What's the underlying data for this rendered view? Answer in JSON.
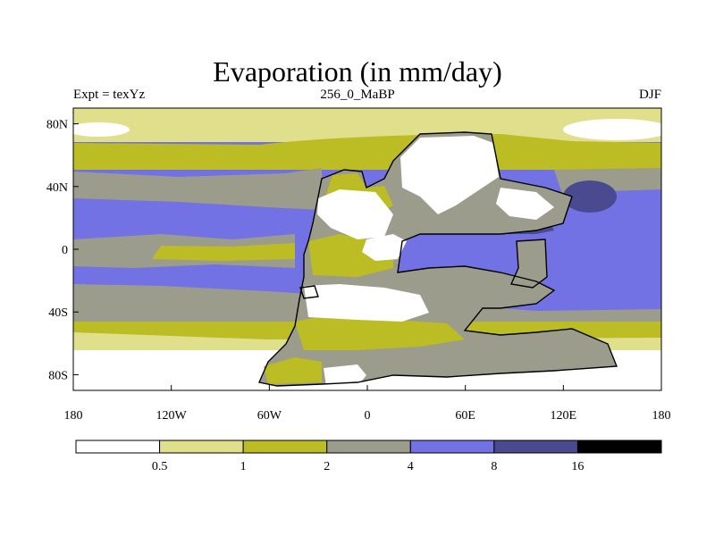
{
  "title": "Evaporation (in mm/day)",
  "subtitle_left": "Expt = texYz",
  "subtitle_center": "256_0_MaBP",
  "subtitle_right": "DJF",
  "map": {
    "projection": "cylindrical-equidistant",
    "lon_range": [
      -180,
      180
    ],
    "lat_range": [
      -90,
      90
    ],
    "lon_ticks": [
      {
        "value": -180,
        "label": "180"
      },
      {
        "value": -120,
        "label": "120W"
      },
      {
        "value": -60,
        "label": "60W"
      },
      {
        "value": 0,
        "label": "0"
      },
      {
        "value": 60,
        "label": "60E"
      },
      {
        "value": 120,
        "label": "120E"
      },
      {
        "value": 180,
        "label": "180"
      }
    ],
    "lat_ticks": [
      {
        "value": 80,
        "label": "80N"
      },
      {
        "value": 40,
        "label": "40N"
      },
      {
        "value": 0,
        "label": "0"
      },
      {
        "value": -40,
        "label": "40S"
      },
      {
        "value": -80,
        "label": "80S"
      }
    ]
  },
  "legend": {
    "thresholds": [
      "0.5",
      "1",
      "2",
      "4",
      "8",
      "16"
    ],
    "colors": [
      "#ffffff",
      "#e0e08c",
      "#bcbc24",
      "#9c9c8c",
      "#7272e4",
      "#4a4a90",
      "#000000"
    ]
  },
  "colors": {
    "c0": "#ffffff",
    "c1": "#e0e08c",
    "c2": "#bcbc24",
    "c3": "#9c9c8c",
    "c4": "#7272e4",
    "c5": "#4a4a90",
    "coast": "#000000"
  }
}
